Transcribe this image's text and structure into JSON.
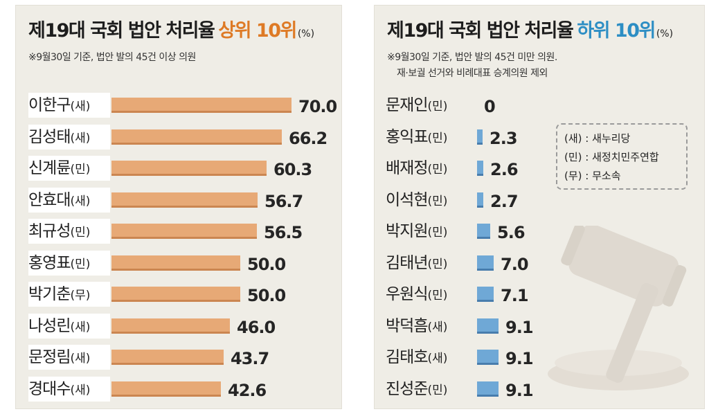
{
  "panels": {
    "left": {
      "title": "제19대 국회 법안 처리율",
      "highlight": "상위 10위",
      "unit": "(%)",
      "note": "※9월30일 기준, 법안 발의 45건 이상 의원"
    },
    "right": {
      "title": "제19대 국회 법안 처리율",
      "highlight": "하위 10위",
      "unit": "(%)",
      "note_line1": "※9월30일 기준, 법안 발의 45건 미만 의원.",
      "note_line2": "재·보궐 선거와 비례대표 승계의원 제외"
    }
  },
  "legend": {
    "items": [
      "(새) : 새누리당",
      "(민) : 새정치민주연합",
      "(무) : 무소속"
    ]
  },
  "colors": {
    "top_accent": "#de7a25",
    "bottom_accent": "#2d8ec4",
    "top_bar": "#e7a976",
    "bottom_bar": "#6fa8d6",
    "panel_bg": "#efede6"
  },
  "chart_data": [
    {
      "type": "bar",
      "orientation": "horizontal",
      "title": "제19대 국회 법안 처리율 상위 10위(%)",
      "categories": [
        "이한구(새)",
        "김성태(새)",
        "신계륜(민)",
        "안효대(새)",
        "최규성(민)",
        "홍영표(민)",
        "박기춘(무)",
        "나성린(새)",
        "문정림(새)",
        "경대수(새)"
      ],
      "values": [
        70.0,
        66.2,
        60.3,
        56.7,
        56.5,
        50.0,
        50.0,
        46.0,
        43.7,
        42.6
      ],
      "labels": [
        "70.0",
        "66.2",
        "60.3",
        "56.7",
        "56.5",
        "50.0",
        "50.0",
        "46.0",
        "43.7",
        "42.6"
      ],
      "xlim": [
        0,
        70
      ]
    },
    {
      "type": "bar",
      "orientation": "horizontal",
      "title": "제19대 국회 법안 처리율 하위 10위(%)",
      "categories": [
        "문재인(민)",
        "홍익표(민)",
        "배재정(민)",
        "이석현(민)",
        "박지원(민)",
        "김태년(민)",
        "우원식(민)",
        "박덕흠(새)",
        "김태호(새)",
        "진성준(민)"
      ],
      "values": [
        0,
        2.3,
        2.6,
        2.7,
        5.6,
        7.0,
        7.1,
        9.1,
        9.1,
        9.1
      ],
      "labels": [
        "0",
        "2.3",
        "2.6",
        "2.7",
        "5.6",
        "7.0",
        "7.1",
        "9.1",
        "9.1",
        "9.1"
      ],
      "xlim": [
        0,
        70
      ]
    }
  ]
}
